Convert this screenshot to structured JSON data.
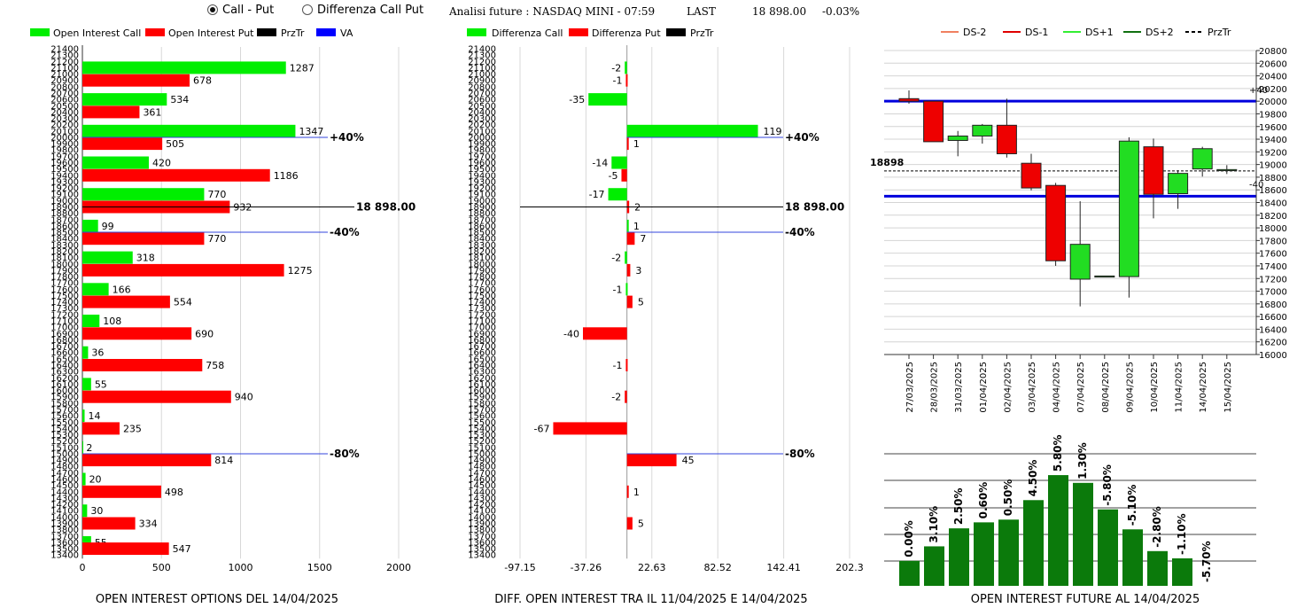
{
  "header": {
    "radio_call_put": "Call - Put",
    "radio_diff": "Differenza Call Put",
    "selected": "call_put",
    "future_info": "Analisi future : NASDAQ MINI - 07:59",
    "last_label": "LAST",
    "last_value": "18 898.00",
    "last_change": "-0.03%"
  },
  "colors": {
    "call": "#00ee00",
    "put": "#ff0000",
    "przTr": "#000000",
    "va": "#0000ff",
    "candle_up": "#22dd22",
    "candle_down": "#ee0000",
    "bar_green": "#0b7a0b"
  },
  "strikes": [
    21400,
    21300,
    21200,
    21100,
    21000,
    20900,
    20800,
    20700,
    20600,
    20500,
    20400,
    20300,
    20200,
    20100,
    20000,
    19900,
    19800,
    19700,
    19600,
    19500,
    19400,
    19300,
    19200,
    19100,
    19000,
    18900,
    18800,
    18700,
    18600,
    18500,
    18400,
    18300,
    18200,
    18100,
    18000,
    17900,
    17800,
    17700,
    17600,
    17500,
    17400,
    17300,
    17200,
    17100,
    17000,
    16900,
    16800,
    16700,
    16600,
    16500,
    16400,
    16300,
    16200,
    16100,
    16000,
    15900,
    15800,
    15700,
    15600,
    15500,
    15400,
    15300,
    15200,
    15100,
    15000,
    14900,
    14800,
    14700,
    14600,
    14500,
    14400,
    14300,
    14200,
    14100,
    14000,
    13900,
    13800,
    13700,
    13600,
    13500,
    13400
  ],
  "chart_data": [
    {
      "type": "bar",
      "title": "OPEN INTEREST OPTIONS DEL 14/04/2025",
      "legend": [
        "Open Interest Call",
        "Open Interest Put",
        "PrzTr",
        "VA"
      ],
      "series": [
        {
          "name": "Open Interest Call",
          "points": [
            {
              "strike": 21100,
              "value": 1287
            },
            {
              "strike": 20600,
              "value": 534
            },
            {
              "strike": 20100,
              "value": 1347
            },
            {
              "strike": 19600,
              "value": 420
            },
            {
              "strike": 19100,
              "value": 770
            },
            {
              "strike": 18600,
              "value": 99
            },
            {
              "strike": 18100,
              "value": 318
            },
            {
              "strike": 17600,
              "value": 166
            },
            {
              "strike": 17100,
              "value": 108
            },
            {
              "strike": 16600,
              "value": 36
            },
            {
              "strike": 16100,
              "value": 55
            },
            {
              "strike": 15600,
              "value": 14
            },
            {
              "strike": 15100,
              "value": 2
            },
            {
              "strike": 14600,
              "value": 20
            },
            {
              "strike": 14100,
              "value": 30
            },
            {
              "strike": 13600,
              "value": 55
            }
          ]
        },
        {
          "name": "Open Interest Put",
          "points": [
            {
              "strike": 20900,
              "value": 678
            },
            {
              "strike": 20400,
              "value": 361
            },
            {
              "strike": 19900,
              "value": 505
            },
            {
              "strike": 19400,
              "value": 1186
            },
            {
              "strike": 18900,
              "value": 932
            },
            {
              "strike": 18400,
              "value": 770
            },
            {
              "strike": 17900,
              "value": 1275
            },
            {
              "strike": 17400,
              "value": 554
            },
            {
              "strike": 16900,
              "value": 690
            },
            {
              "strike": 16400,
              "value": 758
            },
            {
              "strike": 15900,
              "value": 940
            },
            {
              "strike": 15400,
              "value": 235
            },
            {
              "strike": 14900,
              "value": 814
            },
            {
              "strike": 14400,
              "value": 498
            },
            {
              "strike": 13900,
              "value": 334
            },
            {
              "strike": 13500,
              "value": 547
            }
          ]
        }
      ],
      "xlim": [
        0,
        2000
      ],
      "xticks": [
        "0",
        "500",
        "1000",
        "1500",
        "2000"
      ],
      "markers": [
        {
          "strike": 20000,
          "label": "+40%"
        },
        {
          "strike": 18900,
          "label": "18 898.00"
        },
        {
          "strike": 18500,
          "label": "-40%"
        },
        {
          "strike": 15000,
          "label": "-80%"
        }
      ]
    },
    {
      "type": "bar",
      "title": "DIFF. OPEN INTEREST TRA IL 11/04/2025 E 14/04/2025",
      "legend": [
        "Differenza Call",
        "Differenza Put",
        "PrzTr"
      ],
      "series": [
        {
          "name": "Differenza Call",
          "points": [
            {
              "strike": 21100,
              "value": -2
            },
            {
              "strike": 20600,
              "value": -35
            },
            {
              "strike": 20100,
              "value": 119
            },
            {
              "strike": 19600,
              "value": -14
            },
            {
              "strike": 19100,
              "value": -17
            },
            {
              "strike": 18600,
              "value": 1
            },
            {
              "strike": 18100,
              "value": -2
            },
            {
              "strike": 17600,
              "value": -1
            }
          ]
        },
        {
          "name": "Differenza Put",
          "points": [
            {
              "strike": 20900,
              "value": -1
            },
            {
              "strike": 19900,
              "value": 1
            },
            {
              "strike": 19400,
              "value": -5
            },
            {
              "strike": 18900,
              "value": 2
            },
            {
              "strike": 18400,
              "value": 7
            },
            {
              "strike": 17900,
              "value": 3
            },
            {
              "strike": 17400,
              "value": 5
            },
            {
              "strike": 16900,
              "value": -40
            },
            {
              "strike": 16400,
              "value": -1
            },
            {
              "strike": 15900,
              "value": -2
            },
            {
              "strike": 15400,
              "value": -67
            },
            {
              "strike": 14900,
              "value": 45
            },
            {
              "strike": 14400,
              "value": 1
            },
            {
              "strike": 13900,
              "value": 5
            }
          ]
        }
      ],
      "xlim": [
        -97.15,
        202.3
      ],
      "xticks": [
        "-97.15",
        "-37.26",
        "22.63",
        "82.52",
        "142.41",
        "202.3"
      ],
      "markers": [
        {
          "strike": 20000,
          "label": "+40%"
        },
        {
          "strike": 18900,
          "label": "18 898.00"
        },
        {
          "strike": 18500,
          "label": "-40%"
        },
        {
          "strike": 15000,
          "label": "-80%"
        }
      ]
    },
    {
      "type": "candlestick",
      "legend": [
        "DS-2",
        "DS-1",
        "DS+1",
        "DS+2",
        "PrzTr"
      ],
      "legend_colors": [
        "#f08060",
        "#e00000",
        "#33ee33",
        "#107010",
        "#000000"
      ],
      "dates": [
        "27/03/2025",
        "28/03/2025",
        "31/03/2025",
        "01/04/2025",
        "02/04/2025",
        "03/04/2025",
        "04/04/2025",
        "07/04/2025",
        "08/04/2025",
        "09/04/2025",
        "10/04/2025",
        "11/04/2025",
        "14/04/2025",
        "15/04/2025"
      ],
      "candles": [
        {
          "o": 20040,
          "h": 20170,
          "c": 20000,
          "l": 19960
        },
        {
          "o": 20000,
          "h": 20000,
          "c": 19360,
          "l": 19360
        },
        {
          "o": 19380,
          "h": 19530,
          "c": 19450,
          "l": 19130
        },
        {
          "o": 19450,
          "h": 19640,
          "c": 19620,
          "l": 19330
        },
        {
          "o": 19620,
          "h": 20040,
          "c": 19170,
          "l": 19110
        },
        {
          "o": 19020,
          "h": 19170,
          "c": 18630,
          "l": 18590
        },
        {
          "o": 18670,
          "h": 18710,
          "c": 17480,
          "l": 17400
        },
        {
          "o": 17190,
          "h": 18420,
          "c": 17740,
          "l": 16760
        },
        {
          "o": 17240,
          "h": 17240,
          "c": 17240,
          "l": 17240
        },
        {
          "o": 17230,
          "h": 19430,
          "c": 19370,
          "l": 16900
        },
        {
          "o": 19280,
          "h": 19410,
          "c": 18530,
          "l": 18150
        },
        {
          "o": 18540,
          "h": 18910,
          "c": 18860,
          "l": 18300
        },
        {
          "o": 18930,
          "h": 19280,
          "c": 19250,
          "l": 18810
        },
        {
          "o": 18920,
          "h": 18990,
          "c": 18920,
          "l": 18850
        }
      ],
      "ylim": [
        16000,
        20800
      ],
      "yticks": [
        "16000",
        "16200",
        "16400",
        "16600",
        "16800",
        "17000",
        "17200",
        "17400",
        "17600",
        "17800",
        "18000",
        "18200",
        "18400",
        "18600",
        "18800",
        "19000",
        "19200",
        "19400",
        "19600",
        "19800",
        "20000",
        "20200",
        "20400",
        "20600",
        "20800"
      ],
      "levels": [
        {
          "value": 20000,
          "label": "+40"
        },
        {
          "value": 18500,
          "label": "-40"
        }
      ],
      "przTr": 18898,
      "przTr_label": "18898"
    },
    {
      "type": "bar",
      "title": "OPEN INTEREST FUTURE AL 14/04/2025",
      "values": [
        0.0,
        3.1,
        2.5,
        0.6,
        0.5,
        4.5,
        5.8,
        1.3,
        -5.8,
        -5.1,
        -2.8,
        -1.1,
        -5.7
      ],
      "labels": [
        "0.00%",
        "3.10%",
        "2.50%",
        "0.60%",
        "0.50%",
        "4.50%",
        "5.80%",
        "1.30%",
        "-5.80%",
        "-5.10%",
        "-2.80%",
        "-1.10%",
        "-5.70%"
      ],
      "levels": [
        1.0,
        1.58,
        2.3,
        2.54,
        2.65,
        3.43,
        4.43,
        4.12,
        3.06,
        2.26,
        1.39,
        1.1
      ]
    }
  ]
}
